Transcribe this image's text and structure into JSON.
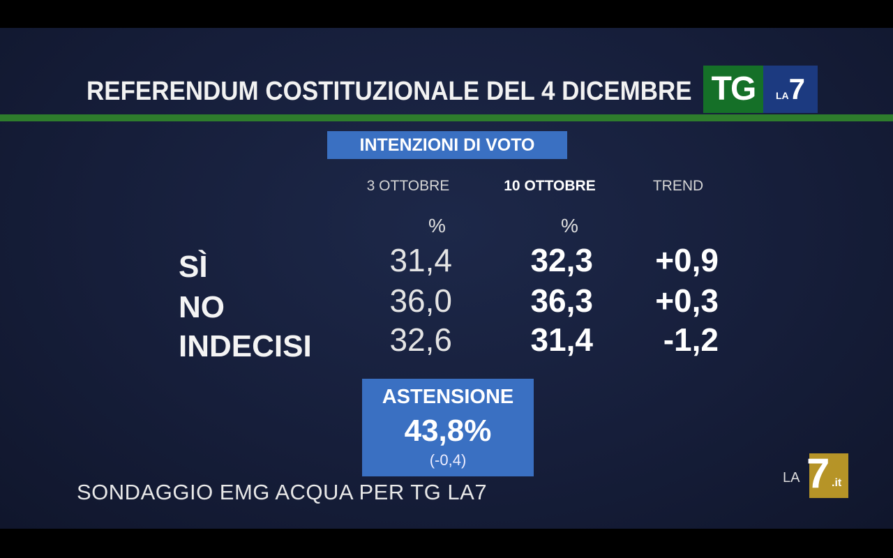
{
  "header": {
    "title": "REFERENDUM COSTITUZIONALE DEL 4 DICEMBRE",
    "logo_tg": "TG",
    "logo_la": "LA",
    "logo_seven": "7"
  },
  "subtitle": "INTENZIONI DI VOTO",
  "columns": {
    "col1": "3 OTTOBRE",
    "col2": "10 OTTOBRE",
    "col3": "TREND",
    "unit": "%"
  },
  "rows": [
    {
      "label": "SÌ",
      "oct3": "31,4",
      "oct10": "32,3",
      "trend": "+0,9"
    },
    {
      "label": "NO",
      "oct3": "36,0",
      "oct10": "36,3",
      "trend": "+0,3"
    },
    {
      "label": "INDECISI",
      "oct3": "32,6",
      "oct10": "31,4",
      "trend": "-1,2"
    }
  ],
  "abstention": {
    "label": "ASTENSIONE",
    "value": "43,8%",
    "delta": "(-0,4)"
  },
  "source": "SONDAGGIO EMG ACQUA PER TG LA7",
  "corner_logo": {
    "la": "LA",
    "seven": "7",
    "it": ".it"
  },
  "colors": {
    "background": "#161e3a",
    "accent_blue": "#3a70c2",
    "green_line": "#2e7d2c"
  }
}
